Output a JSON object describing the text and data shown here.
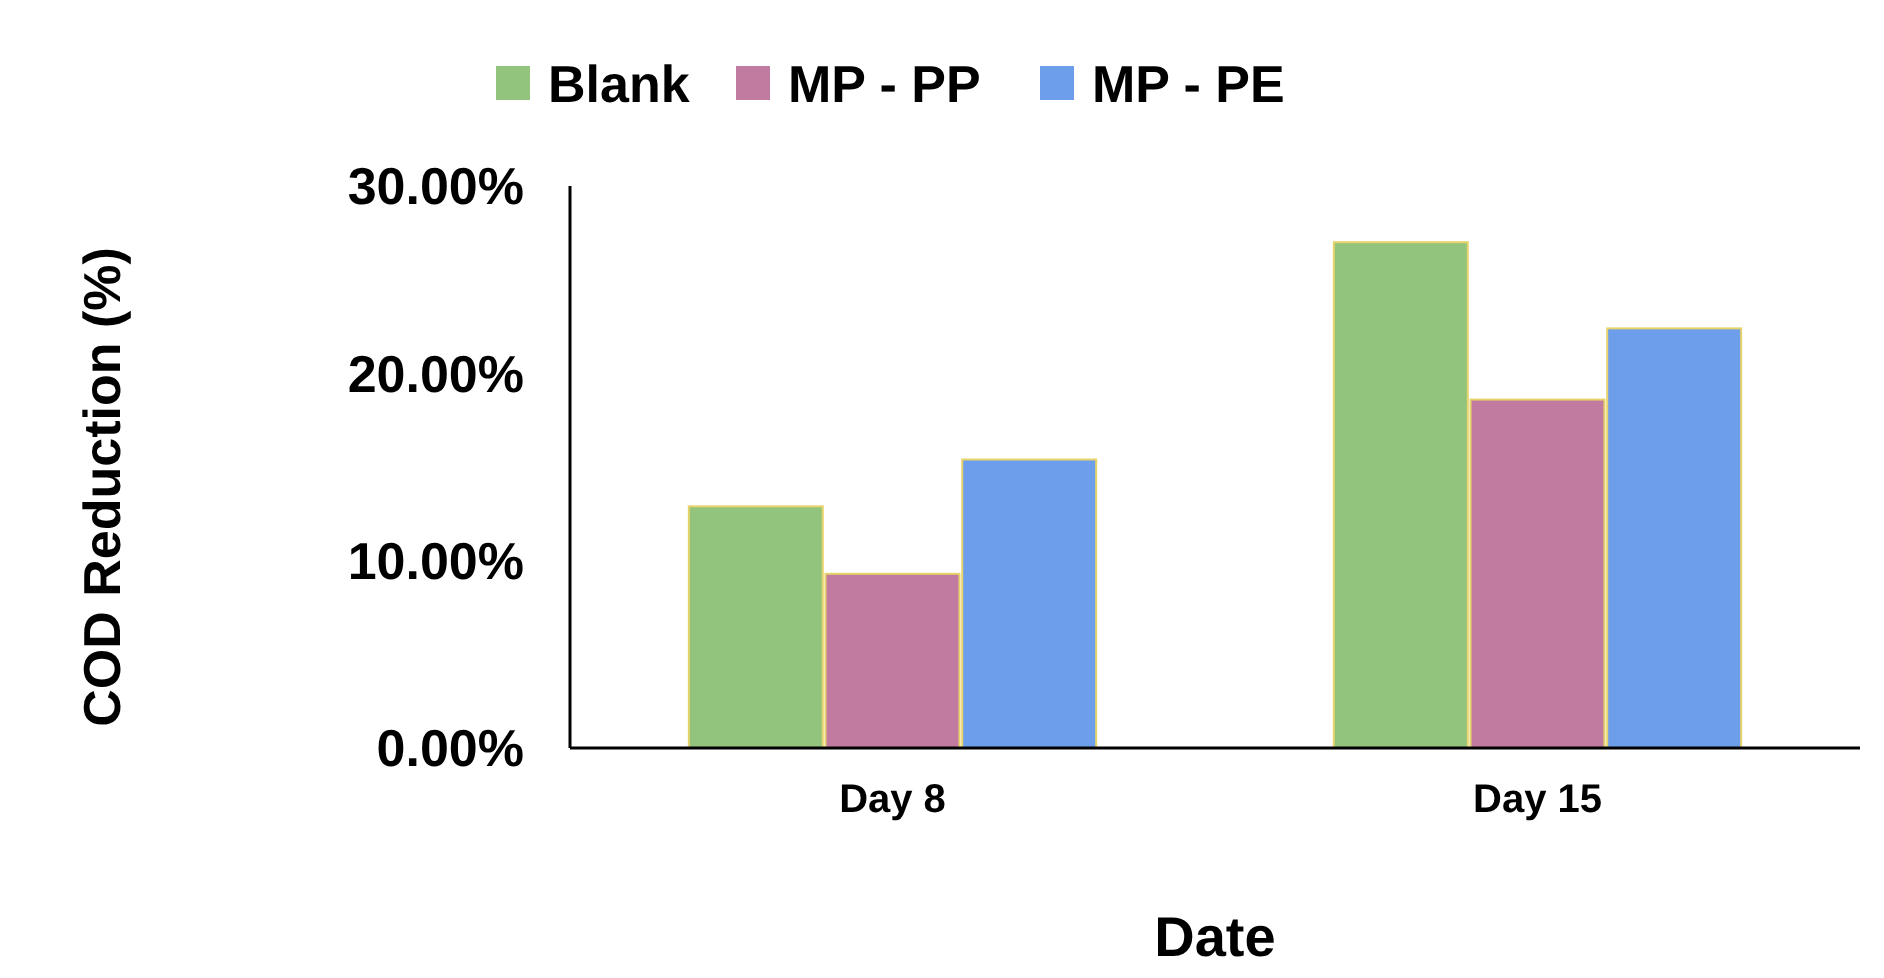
{
  "chart_data": {
    "type": "bar",
    "xlabel": "Date",
    "ylabel": "COD Reduction (%)",
    "categories": [
      "Day 8",
      "Day 15"
    ],
    "series": [
      {
        "name": "Blank",
        "color": "#93c47d",
        "values": [
          12.9,
          27.0
        ]
      },
      {
        "name": "MP - PP",
        "color": "#c27ba0",
        "values": [
          9.3,
          18.6
        ]
      },
      {
        "name": "MP - PE",
        "color": "#6d9eeb",
        "values": [
          15.4,
          22.4
        ]
      }
    ],
    "ylim": [
      0,
      30
    ],
    "yticks": [
      {
        "value": 0,
        "label": "0.00%"
      },
      {
        "value": 10,
        "label": "10.00%"
      },
      {
        "value": 20,
        "label": "20.00%"
      },
      {
        "value": 30,
        "label": "30.00%"
      }
    ],
    "grid": false,
    "legend": "top"
  }
}
